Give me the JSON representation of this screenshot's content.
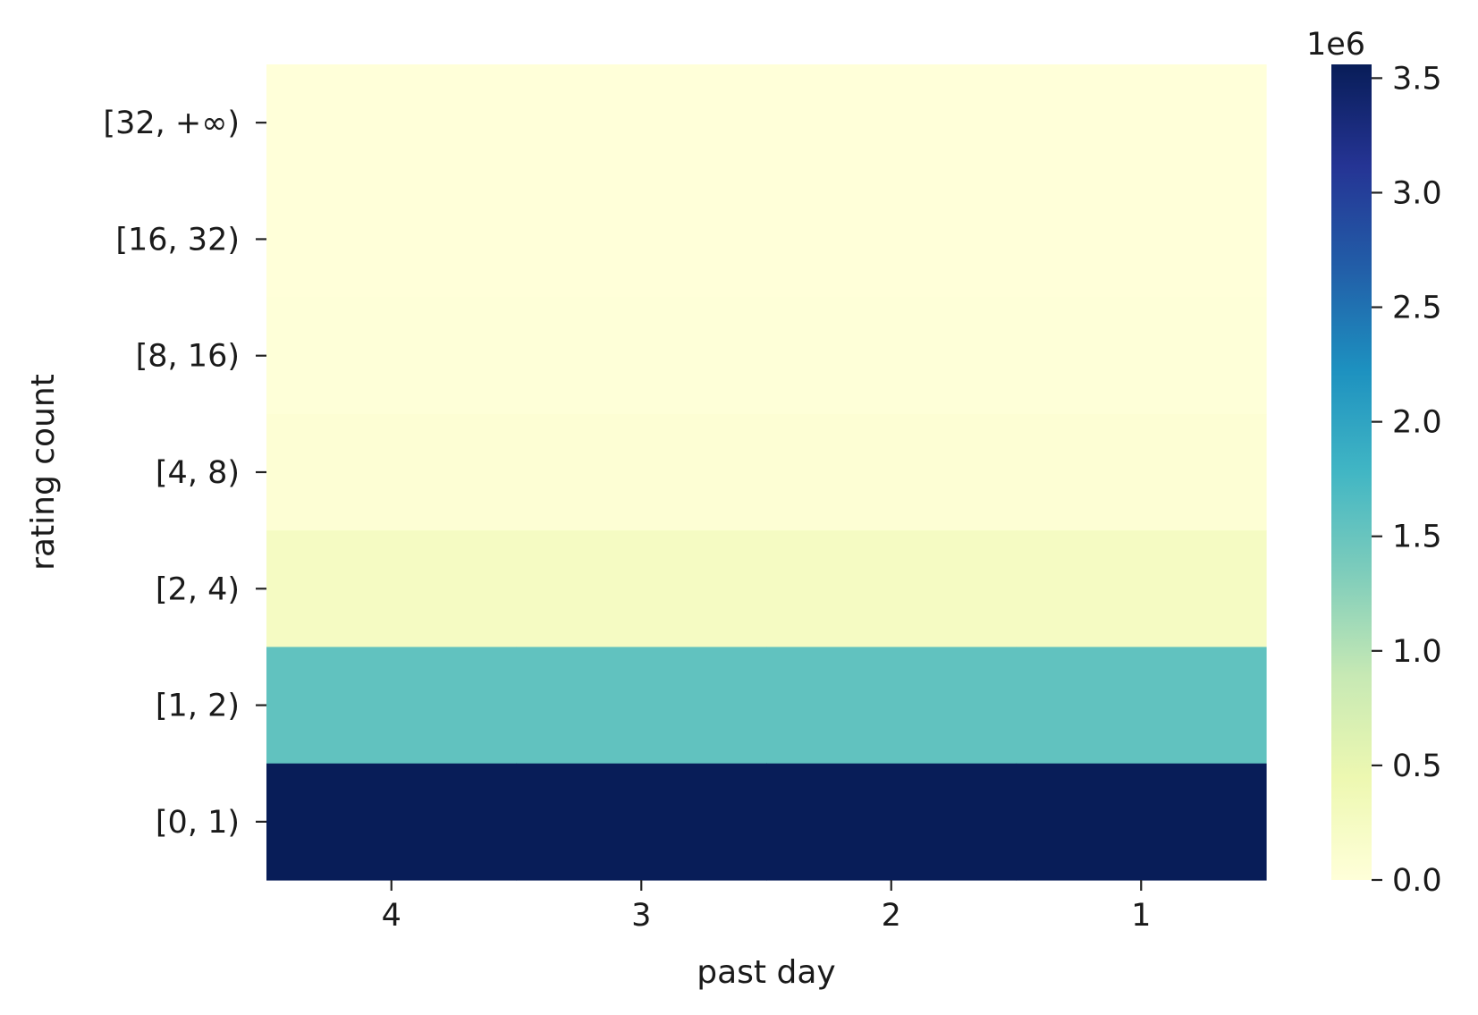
{
  "chart_data": {
    "type": "heatmap",
    "xlabel": "past day",
    "ylabel": "rating count",
    "x_categories": [
      "4",
      "3",
      "2",
      "1"
    ],
    "y_categories": [
      "[32, +∞)",
      "[16, 32)",
      "[8, 16)",
      "[4, 8)",
      "[2, 4)",
      "[1, 2)",
      "[0, 1)"
    ],
    "values": [
      [
        1000,
        1000,
        1000,
        1000
      ],
      [
        3000,
        3000,
        3000,
        3000
      ],
      [
        15000,
        15000,
        15000,
        15000
      ],
      [
        60000,
        60000,
        60000,
        60000
      ],
      [
        250000,
        250000,
        250000,
        250000
      ],
      [
        1550000,
        1550000,
        1550000,
        1550000
      ],
      [
        3560000,
        3560000,
        3560000,
        3560000
      ]
    ],
    "colormap": "YlGnBu",
    "colormap_stops": [
      "#ffffd9",
      "#edf8b1",
      "#c7e9b4",
      "#7fcdbb",
      "#41b6c4",
      "#1d91c0",
      "#225ea8",
      "#253494",
      "#081d58"
    ],
    "colorbar": {
      "min": 0,
      "max": 3560000,
      "ticks": [
        0,
        500000,
        1000000,
        1500000,
        2000000,
        2500000,
        3000000,
        3500000
      ],
      "tick_labels": [
        "0.0",
        "0.5",
        "1.0",
        "1.5",
        "2.0",
        "2.5",
        "3.0",
        "3.5"
      ],
      "offset_label": "1e6"
    }
  }
}
